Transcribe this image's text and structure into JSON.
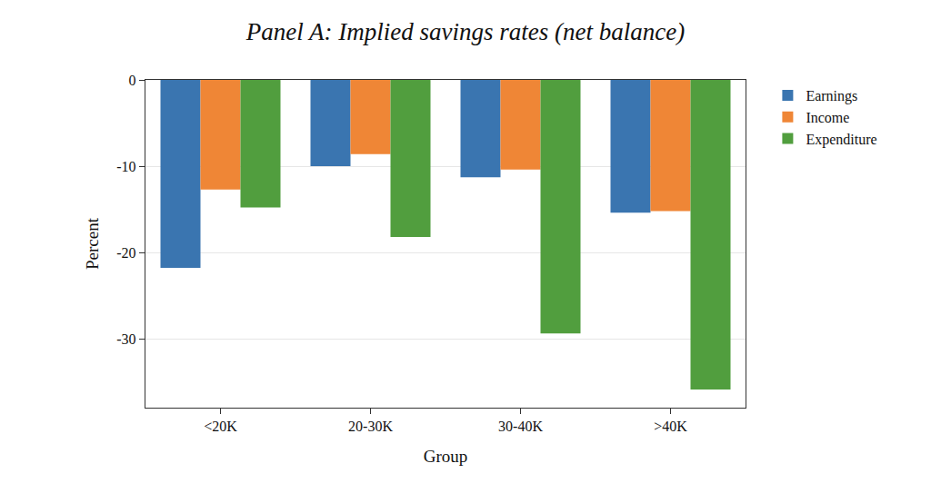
{
  "chart_data": {
    "type": "bar",
    "title": "Panel A: Implied savings rates (net balance)",
    "x_label": "Group",
    "y_label": "Percent",
    "categories": [
      "<20K",
      "20-30K",
      "30-40K",
      ">40K"
    ],
    "series": [
      {
        "name": "Earnings",
        "color": "#3a75b0",
        "values": [
          -21.8,
          -10.0,
          -11.3,
          -15.4
        ]
      },
      {
        "name": "Income",
        "color": "#ef8636",
        "values": [
          -12.7,
          -8.6,
          -10.4,
          -15.2
        ]
      },
      {
        "name": "Expenditure",
        "color": "#519e3e",
        "values": [
          -14.8,
          -18.2,
          -29.4,
          -35.9
        ]
      }
    ],
    "ylim": [
      -38,
      0
    ],
    "yticks": [
      -30,
      -20,
      -10,
      0
    ],
    "grid": true,
    "legend": "right"
  }
}
